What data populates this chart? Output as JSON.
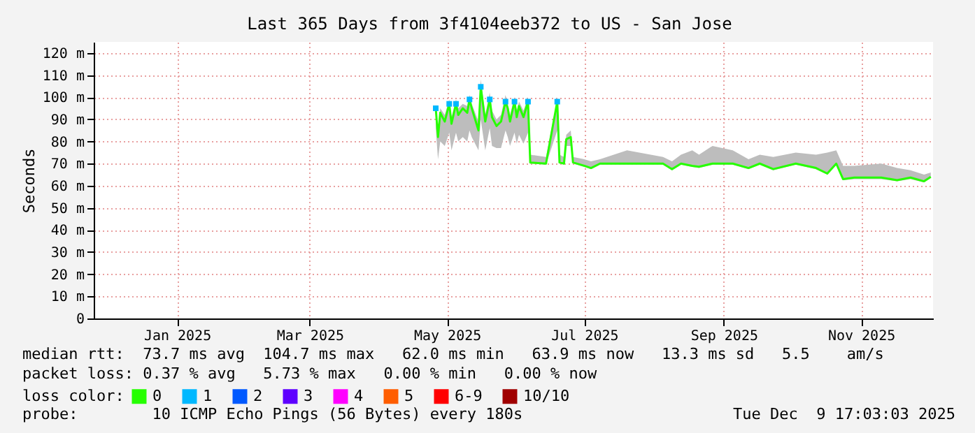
{
  "chart_data": {
    "type": "line",
    "title": "Last 365 Days from 3f4104eeb372 to US - San Jose",
    "ylabel": "Seconds",
    "legend_title": "loss color:",
    "legend": "bottom",
    "grid": true,
    "xlim": [
      "2024-11-25",
      "2025-12-03"
    ],
    "ylim": [
      0,
      125
    ],
    "xticks": [
      {
        "value": "2025-01-01",
        "label": "Jan 2025"
      },
      {
        "value": "2025-03-01",
        "label": "Mar 2025"
      },
      {
        "value": "2025-05-01",
        "label": "May 2025"
      },
      {
        "value": "2025-07-01",
        "label": "Jul 2025"
      },
      {
        "value": "2025-09-01",
        "label": "Sep 2025"
      },
      {
        "value": "2025-11-01",
        "label": "Nov 2025"
      }
    ],
    "yticks": [
      0,
      {
        "value": 10,
        "label": "10 m"
      },
      {
        "value": 20,
        "label": "20 m"
      },
      {
        "value": 30,
        "label": "30 m"
      },
      {
        "value": 40,
        "label": "40 m"
      },
      {
        "value": 50,
        "label": "50 m"
      },
      {
        "value": 60,
        "label": "60 m"
      },
      {
        "value": 70,
        "label": "70 m"
      },
      {
        "value": 80,
        "label": "80 m"
      },
      {
        "value": 90,
        "label": "90 m"
      },
      {
        "value": 100,
        "label": "100 m"
      },
      {
        "value": 110,
        "label": "110 m"
      },
      {
        "value": 120,
        "label": "120 m"
      }
    ],
    "annotations": [
      "median rtt:  73.7 ms avg  104.7 ms max   62.0 ms min   63.9 ms now   13.3 ms sd   5.5    am/s",
      "packet loss: 0.37 % avg   5.73 % max   0.00 % min   0.00 % now",
      "probe:        10 ICMP Echo Pings (56 Bytes) every 180s",
      "Tue Dec  9 17:03:03 2025"
    ],
    "series": [
      {
        "name": "0",
        "color": "#26ff00",
        "x": [
          "2025-04-26",
          "2025-04-27",
          "2025-04-28",
          "2025-04-30",
          "2025-05-02",
          "2025-05-03",
          "2025-05-05",
          "2025-05-06",
          "2025-05-08",
          "2025-05-10",
          "2025-05-11",
          "2025-05-12",
          "2025-05-15",
          "2025-05-16",
          "2025-05-18",
          "2025-05-20",
          "2025-05-21",
          "2025-05-23",
          "2025-05-25",
          "2025-05-27",
          "2025-05-28",
          "2025-05-29",
          "2025-05-31",
          "2025-06-01",
          "2025-06-02",
          "2025-06-04",
          "2025-06-06",
          "2025-06-07",
          "2025-06-14",
          "2025-06-19",
          "2025-06-20",
          "2025-06-22",
          "2025-06-23",
          "2025-06-25",
          "2025-06-26",
          "2025-07-01",
          "2025-07-04",
          "2025-07-08",
          "2025-07-20",
          "2025-08-05",
          "2025-08-09",
          "2025-08-13",
          "2025-08-18",
          "2025-08-21",
          "2025-08-27",
          "2025-09-05",
          "2025-09-12",
          "2025-09-17",
          "2025-09-23",
          "2025-10-03",
          "2025-10-12",
          "2025-10-17",
          "2025-10-21",
          "2025-10-24",
          "2025-10-29",
          "2025-11-10",
          "2025-11-17",
          "2025-11-23",
          "2025-11-29",
          "2025-12-02"
        ],
        "values": [
          95,
          82,
          93,
          89,
          97,
          88,
          97,
          92,
          95,
          93,
          99,
          95,
          85,
          104.7,
          89,
          99,
          91,
          87,
          89,
          98,
          95,
          89,
          98,
          91,
          96,
          91,
          98,
          70.5,
          70,
          98,
          70.5,
          70,
          81,
          82,
          70.5,
          69,
          68,
          70,
          70,
          70,
          67.5,
          70,
          69,
          68.6,
          70,
          70,
          68,
          70,
          67.5,
          70,
          68,
          65.5,
          70,
          63,
          63.7,
          63.7,
          62.5,
          63.7,
          62,
          64
        ],
        "lower": [
          86,
          72,
          80,
          78,
          84,
          76,
          84,
          80,
          82,
          80,
          85,
          82,
          76,
          90,
          76,
          86,
          78,
          77,
          77,
          85,
          82,
          78,
          84,
          79,
          83,
          79,
          84,
          70,
          69.5,
          85,
          70,
          69.5,
          78,
          78,
          70,
          68.5,
          67.5,
          69.5,
          69.5,
          69.5,
          67,
          69.5,
          68.5,
          68,
          69.5,
          69.5,
          67.5,
          69.5,
          67,
          69.5,
          67.5,
          65,
          69.5,
          62.5,
          63,
          63,
          62,
          63,
          61.5,
          63.5
        ],
        "upper": [
          97,
          85,
          95,
          92,
          99,
          91,
          99,
          95,
          97,
          96,
          101,
          97,
          89,
          108,
          92,
          102,
          94,
          90,
          92,
          101,
          97,
          92,
          100,
          94,
          98,
          94,
          100,
          74,
          73,
          99,
          74,
          73,
          83,
          85,
          73,
          72,
          71,
          72,
          76,
          73,
          71,
          74,
          76,
          74,
          78,
          76,
          72,
          74,
          73,
          75,
          74,
          75,
          76,
          69,
          69,
          70,
          68,
          67,
          65,
          66
        ]
      },
      {
        "name": "1",
        "type": "scatter",
        "marker": "square",
        "color": "#00b8ff",
        "x": [
          "2025-04-26",
          "2025-05-02",
          "2025-05-05",
          "2025-05-11",
          "2025-05-16",
          "2025-05-20",
          "2025-05-27",
          "2025-05-31",
          "2025-06-06",
          "2025-06-19"
        ],
        "values": [
          95,
          97,
          97,
          99,
          104.7,
          99,
          98,
          98,
          98,
          98
        ]
      },
      {
        "name": "2",
        "type": "scatter",
        "marker": "square",
        "color": "#0059ff"
      },
      {
        "name": "3",
        "type": "scatter",
        "marker": "square",
        "color": "#5e00ff"
      },
      {
        "name": "4",
        "type": "scatter",
        "marker": "square",
        "color": "#ff00ff"
      },
      {
        "name": "5",
        "type": "scatter",
        "marker": "square",
        "color": "#ff5e00"
      },
      {
        "name": "6-9",
        "type": "scatter",
        "marker": "square",
        "color": "#ff0000"
      },
      {
        "name": "10/10",
        "type": "scatter",
        "marker": "square",
        "color": "#a00000"
      }
    ]
  }
}
